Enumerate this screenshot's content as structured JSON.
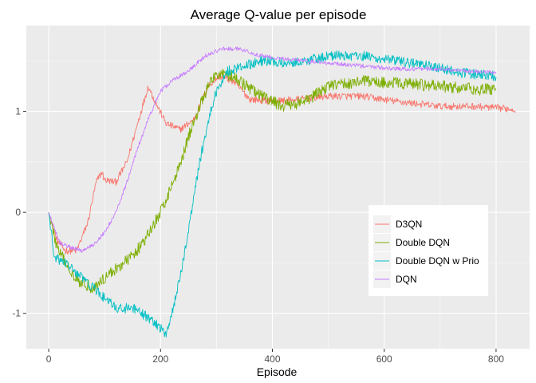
{
  "chart_data": {
    "type": "line",
    "title": "Average Q-value per episode",
    "xlabel": "Episode",
    "ylabel": "",
    "xlim": [
      -40,
      860
    ],
    "ylim": [
      -1.35,
      1.85
    ],
    "x_ticks": [
      0,
      200,
      400,
      600,
      800
    ],
    "y_ticks": [
      -1,
      0,
      1
    ],
    "grid": true,
    "background": "#EBEBEB",
    "legend_position": "right",
    "series": [
      {
        "name": "D3QN",
        "color": "#F8766D",
        "episodes": [
          0,
          835
        ],
        "noise": 0.035,
        "points": [
          [
            0,
            0.0
          ],
          [
            15,
            -0.28
          ],
          [
            30,
            -0.38
          ],
          [
            50,
            -0.38
          ],
          [
            70,
            -0.1
          ],
          [
            85,
            0.3
          ],
          [
            95,
            0.4
          ],
          [
            100,
            0.32
          ],
          [
            120,
            0.3
          ],
          [
            140,
            0.5
          ],
          [
            160,
            0.9
          ],
          [
            178,
            1.25
          ],
          [
            190,
            1.1
          ],
          [
            210,
            0.88
          ],
          [
            235,
            0.82
          ],
          [
            260,
            0.92
          ],
          [
            285,
            1.25
          ],
          [
            305,
            1.35
          ],
          [
            330,
            1.3
          ],
          [
            360,
            1.12
          ],
          [
            400,
            1.1
          ],
          [
            450,
            1.12
          ],
          [
            500,
            1.15
          ],
          [
            560,
            1.15
          ],
          [
            620,
            1.1
          ],
          [
            700,
            1.05
          ],
          [
            760,
            1.05
          ],
          [
            835,
            1.02
          ]
        ]
      },
      {
        "name": "Double DQN",
        "color": "#7CAE00",
        "episodes": [
          0,
          800
        ],
        "noise": 0.06,
        "points": [
          [
            0,
            0.0
          ],
          [
            15,
            -0.35
          ],
          [
            35,
            -0.55
          ],
          [
            55,
            -0.68
          ],
          [
            80,
            -0.75
          ],
          [
            110,
            -0.6
          ],
          [
            140,
            -0.48
          ],
          [
            170,
            -0.3
          ],
          [
            200,
            0.0
          ],
          [
            230,
            0.4
          ],
          [
            250,
            0.75
          ],
          [
            270,
            1.05
          ],
          [
            290,
            1.3
          ],
          [
            310,
            1.4
          ],
          [
            340,
            1.3
          ],
          [
            380,
            1.15
          ],
          [
            420,
            1.05
          ],
          [
            460,
            1.1
          ],
          [
            500,
            1.25
          ],
          [
            560,
            1.3
          ],
          [
            620,
            1.28
          ],
          [
            700,
            1.25
          ],
          [
            760,
            1.22
          ],
          [
            800,
            1.22
          ]
        ]
      },
      {
        "name": "Double DQN w Prio",
        "color": "#00BFC4",
        "episodes": [
          0,
          800
        ],
        "noise": 0.05,
        "points": [
          [
            0,
            0.0
          ],
          [
            10,
            -0.45
          ],
          [
            30,
            -0.5
          ],
          [
            60,
            -0.65
          ],
          [
            90,
            -0.8
          ],
          [
            120,
            -0.95
          ],
          [
            150,
            -0.95
          ],
          [
            180,
            -1.05
          ],
          [
            200,
            -1.15
          ],
          [
            210,
            -1.2
          ],
          [
            225,
            -0.9
          ],
          [
            240,
            -0.5
          ],
          [
            255,
            0.0
          ],
          [
            270,
            0.5
          ],
          [
            285,
            0.9
          ],
          [
            300,
            1.2
          ],
          [
            320,
            1.4
          ],
          [
            350,
            1.45
          ],
          [
            380,
            1.5
          ],
          [
            420,
            1.48
          ],
          [
            460,
            1.5
          ],
          [
            500,
            1.55
          ],
          [
            560,
            1.55
          ],
          [
            620,
            1.5
          ],
          [
            680,
            1.45
          ],
          [
            740,
            1.38
          ],
          [
            800,
            1.35
          ]
        ]
      },
      {
        "name": "DQN",
        "color": "#C77CFF",
        "episodes": [
          0,
          800
        ],
        "noise": 0.02,
        "points": [
          [
            0,
            0.0
          ],
          [
            20,
            -0.3
          ],
          [
            40,
            -0.35
          ],
          [
            60,
            -0.38
          ],
          [
            80,
            -0.32
          ],
          [
            100,
            -0.2
          ],
          [
            120,
            0.0
          ],
          [
            140,
            0.3
          ],
          [
            160,
            0.65
          ],
          [
            180,
            0.95
          ],
          [
            200,
            1.2
          ],
          [
            220,
            1.3
          ],
          [
            250,
            1.4
          ],
          [
            280,
            1.55
          ],
          [
            310,
            1.62
          ],
          [
            340,
            1.62
          ],
          [
            380,
            1.55
          ],
          [
            420,
            1.52
          ],
          [
            460,
            1.5
          ],
          [
            500,
            1.48
          ],
          [
            560,
            1.45
          ],
          [
            620,
            1.42
          ],
          [
            700,
            1.42
          ],
          [
            800,
            1.38
          ]
        ]
      }
    ]
  }
}
